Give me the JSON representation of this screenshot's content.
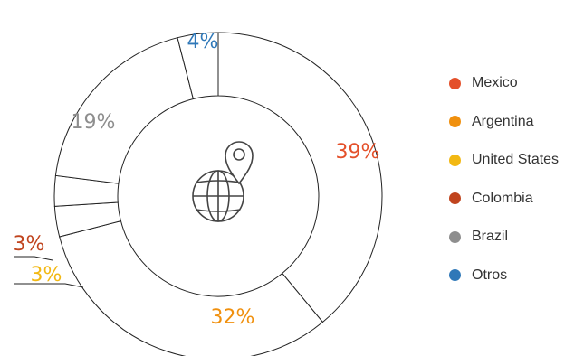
{
  "chart_data": {
    "type": "donut",
    "title": "",
    "series": [
      {
        "name": "Mexico",
        "value": 39,
        "label": "39%",
        "color": "#E4502A"
      },
      {
        "name": "Argentina",
        "value": 32,
        "label": "32%",
        "color": "#F0900E"
      },
      {
        "name": "United States",
        "value": 3,
        "label": "3%",
        "color": "#F2B813"
      },
      {
        "name": "Colombia",
        "value": 3,
        "label": "3%",
        "color": "#C0441E"
      },
      {
        "name": "Brazil",
        "value": 19,
        "label": "19%",
        "color": "#8E8E8E"
      },
      {
        "name": "Otros",
        "value": 4,
        "label": "4%",
        "color": "#2F78B8"
      }
    ],
    "center_icon": "globe-location-pin-icon",
    "legend_position": "right",
    "line_color": "#222222"
  }
}
